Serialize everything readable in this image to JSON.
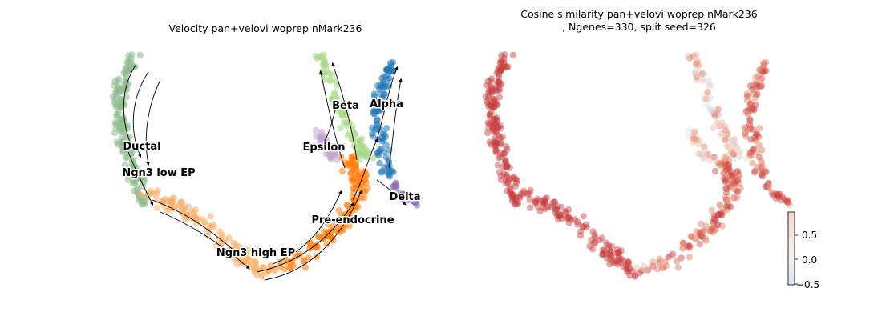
{
  "chart_data": [
    {
      "type": "scatter",
      "subtype": "umap-velocity-streamplot",
      "title": "Velocity pan+velovi woprep nMark236",
      "axes": "off",
      "grid": false,
      "cluster_labels": [
        "Ductal",
        "Ngn3 low EP",
        "Ngn3 high EP",
        "Pre-endocrine",
        "Beta",
        "Alpha",
        "Delta",
        "Epsilon"
      ],
      "cluster_colors": {
        "Ductal": "#8fbc8f",
        "Ngn3 low EP": "#8fbc8f",
        "Ngn3 high EP": "#f6b06b",
        "Pre-endocrine": "#ff7f0e",
        "Beta": "#a6d785",
        "Alpha": "#1f77b4",
        "Delta": "#8c6bb1",
        "Epsilon": "#c2a5cf"
      },
      "stream_color": "#000000"
    },
    {
      "type": "scatter",
      "subtype": "umap-colored-by-value",
      "title_lines": [
        "Cosine similarity pan+velovi woprep nMark236",
        ", Ngenes=330, split seed=326"
      ],
      "axes": "off",
      "grid": false,
      "colorbar": {
        "colormap": "coolwarm",
        "range": [
          -0.55,
          0.95
        ],
        "ticks": [
          0.5,
          0.0,
          -0.5
        ],
        "tick_labels": [
          "0.5",
          "0.0",
          "−0.5"
        ],
        "placement": "bottom-right"
      }
    }
  ]
}
